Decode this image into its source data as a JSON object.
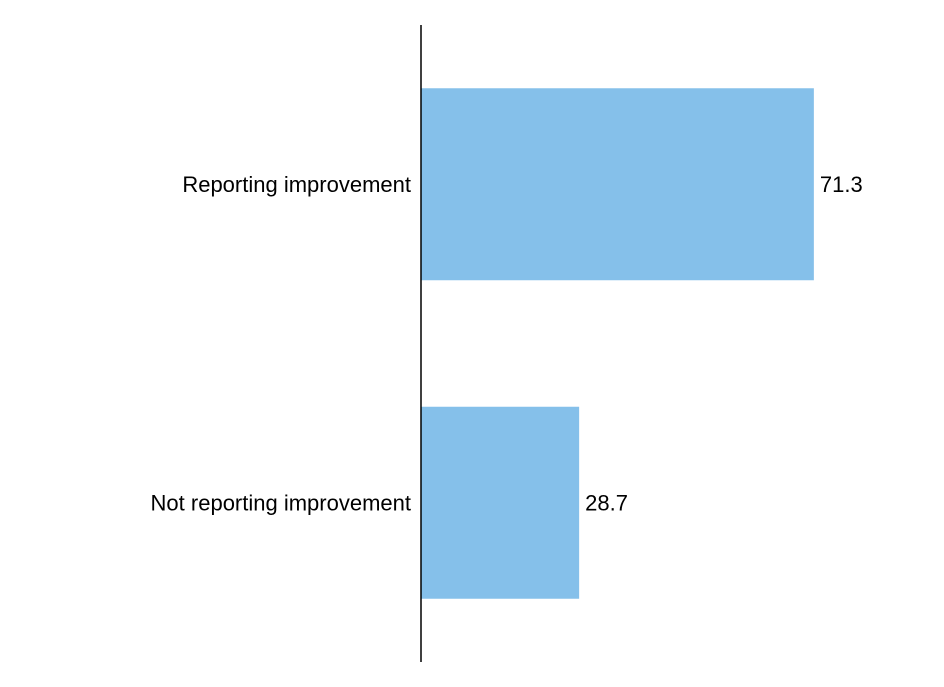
{
  "chart_data": {
    "type": "bar",
    "orientation": "horizontal",
    "categories": [
      "Reporting improvement",
      "Not reporting improvement"
    ],
    "values": [
      71.3,
      28.7
    ],
    "value_labels": [
      "71.3",
      "28.7"
    ],
    "xlim": [
      0,
      100
    ],
    "grid": false,
    "legend": "none",
    "bar_color": "#85c0ea",
    "axis_color": "#000000"
  }
}
